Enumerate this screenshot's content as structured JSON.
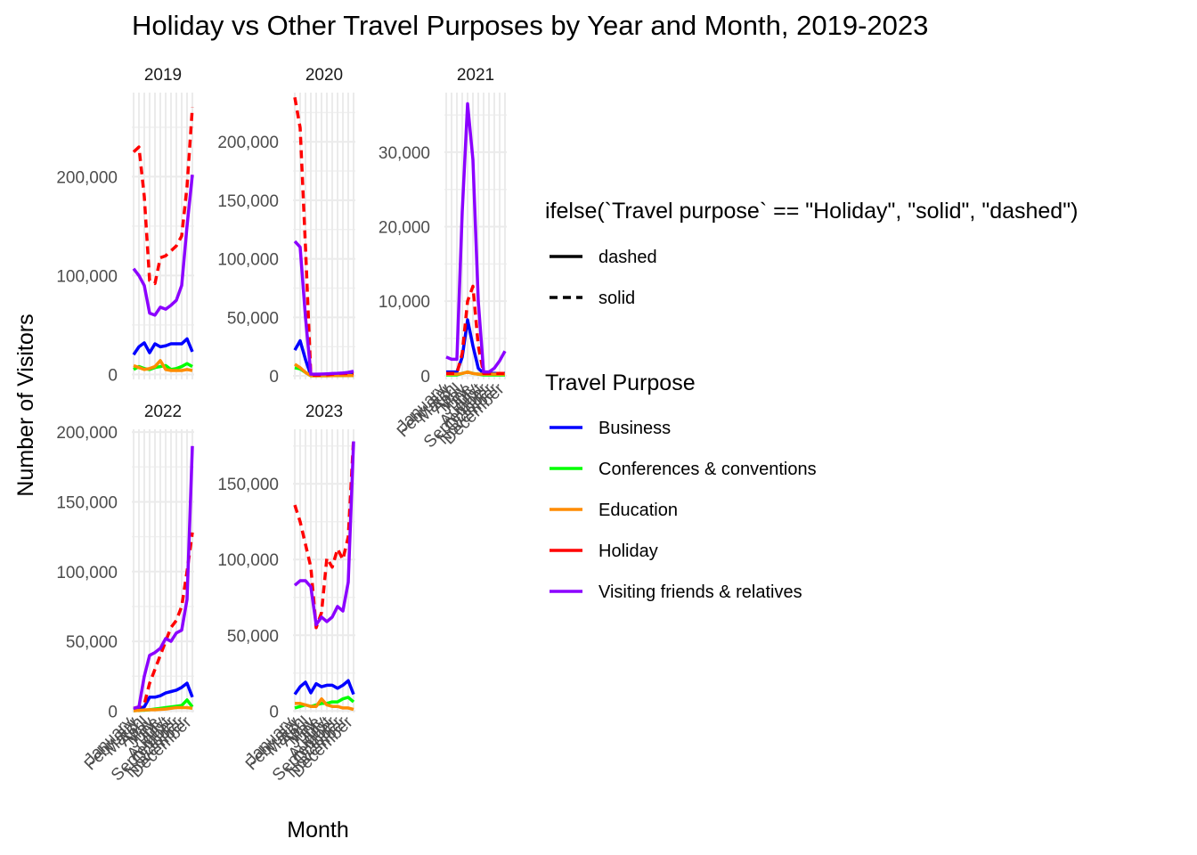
{
  "chart_data": {
    "type": "line",
    "title": "Holiday vs Other Travel Purposes by Year and Month, 2019-2023",
    "xlabel": "Month",
    "ylabel": "Number of Visitors",
    "months": [
      "January",
      "February",
      "March",
      "April",
      "May",
      "June",
      "July",
      "August",
      "September",
      "October",
      "November",
      "December"
    ],
    "linetype_legend": {
      "title": "ifelse(`Travel purpose` == \"Holiday\", \"solid\", \"dashed\")",
      "entries": [
        {
          "label": "dashed",
          "dash": "solid"
        },
        {
          "label": "solid",
          "dash": "dashed"
        }
      ]
    },
    "color_legend": {
      "title": "Travel Purpose",
      "entries": [
        {
          "label": "Business",
          "color": "#0000ff"
        },
        {
          "label": "Conferences & conventions",
          "color": "#00ff00"
        },
        {
          "label": "Education",
          "color": "#ff8c00"
        },
        {
          "label": "Holiday",
          "color": "#ff0000"
        },
        {
          "label": "Visiting friends & relatives",
          "color": "#8b00ff"
        }
      ]
    },
    "panels": [
      {
        "year": "2019",
        "ylim": [
          -5000,
          285000
        ],
        "y_ticks": [
          0,
          100000,
          200000
        ],
        "y_tick_labels": [
          "0",
          "100,000",
          "200,000"
        ],
        "series": [
          {
            "name": "Business",
            "values": [
              20000,
              28000,
              32000,
              22000,
              31000,
              28000,
              29000,
              31000,
              31000,
              31000,
              36000,
              23000
            ]
          },
          {
            "name": "Conferences & conventions",
            "values": [
              5000,
              8000,
              6000,
              5000,
              7000,
              8000,
              9000,
              5000,
              6000,
              8000,
              11000,
              8000
            ]
          },
          {
            "name": "Education",
            "values": [
              9000,
              7000,
              5000,
              6000,
              8000,
              14000,
              5000,
              4000,
              4000,
              4000,
              5000,
              4000
            ]
          },
          {
            "name": "Holiday",
            "values": [
              225000,
              230000,
              180000,
              95000,
              92000,
              118000,
              120000,
              125000,
              130000,
              140000,
              190000,
              270000
            ]
          },
          {
            "name": "Visiting friends & relatives",
            "values": [
              107000,
              100000,
              90000,
              62000,
              60000,
              68000,
              66000,
              70000,
              75000,
              90000,
              150000,
              202000
            ]
          }
        ]
      },
      {
        "year": "2020",
        "ylim": [
          -3000,
          242000
        ],
        "y_ticks": [
          0,
          50000,
          100000,
          150000,
          200000
        ],
        "y_tick_labels": [
          "0",
          "50,000",
          "100,000",
          "150,000",
          "200,000"
        ],
        "series": [
          {
            "name": "Business",
            "values": [
              22000,
              30000,
              14000,
              500,
              500,
              600,
              800,
              900,
              1000,
              1200,
              1500,
              1500
            ]
          },
          {
            "name": "Conferences & conventions",
            "values": [
              7000,
              6000,
              3000,
              100,
              100,
              100,
              100,
              200,
              200,
              200,
              300,
              300
            ]
          },
          {
            "name": "Education",
            "values": [
              10000,
              7000,
              3000,
              100,
              100,
              100,
              100,
              200,
              300,
              300,
              300,
              300
            ]
          },
          {
            "name": "Holiday",
            "values": [
              238000,
              212000,
              110000,
              600,
              500,
              700,
              1000,
              1500,
              2000,
              2000,
              2000,
              2000
            ]
          },
          {
            "name": "Visiting friends & relatives",
            "values": [
              115000,
              110000,
              50000,
              1500,
              1500,
              1600,
              1800,
              2000,
              2200,
              2500,
              3000,
              4000
            ]
          }
        ]
      },
      {
        "year": "2021",
        "ylim": [
          -500,
          38000
        ],
        "y_ticks": [
          0,
          10000,
          20000,
          30000
        ],
        "y_tick_labels": [
          "0",
          "10,000",
          "20,000",
          "30,000"
        ],
        "series": [
          {
            "name": "Business",
            "values": [
              500,
              500,
              500,
              2500,
              7500,
              4000,
              1000,
              300,
              300,
              300,
              300,
              300
            ]
          },
          {
            "name": "Conferences & conventions",
            "values": [
              100,
              100,
              100,
              300,
              500,
              300,
              200,
              100,
              100,
              100,
              100,
              100
            ]
          },
          {
            "name": "Education",
            "values": [
              200,
              200,
              200,
              300,
              500,
              300,
              200,
              200,
              200,
              200,
              200,
              200
            ]
          },
          {
            "name": "Holiday",
            "values": [
              300,
              300,
              300,
              3000,
              10000,
              12000,
              4000,
              300,
              300,
              300,
              300,
              300
            ]
          },
          {
            "name": "Visiting friends & relatives",
            "values": [
              2500,
              2200,
              2200,
              22000,
              36500,
              29000,
              10000,
              500,
              500,
              1000,
              2000,
              3300
            ]
          }
        ]
      },
      {
        "year": "2022",
        "ylim": [
          -1000,
          202000
        ],
        "y_ticks": [
          0,
          50000,
          100000,
          150000,
          200000
        ],
        "y_tick_labels": [
          "0",
          "50,000",
          "100,000",
          "150,000",
          "200,000"
        ],
        "series": [
          {
            "name": "Business",
            "values": [
              1000,
              2000,
              3000,
              10000,
              10000,
              11000,
              13000,
              14000,
              15000,
              17000,
              20000,
              10000
            ]
          },
          {
            "name": "Conferences & conventions",
            "values": [
              300,
              500,
              700,
              1000,
              1500,
              2000,
              2500,
              3000,
              3500,
              4000,
              8000,
              3000
            ]
          },
          {
            "name": "Education",
            "values": [
              300,
              500,
              800,
              1000,
              1000,
              1200,
              1500,
              2000,
              2500,
              2500,
              2500,
              2000
            ]
          },
          {
            "name": "Holiday",
            "values": [
              2000,
              3000,
              5000,
              20000,
              30000,
              40000,
              50000,
              60000,
              65000,
              75000,
              100000,
              128000
            ]
          },
          {
            "name": "Visiting friends & relatives",
            "values": [
              2000,
              3000,
              25000,
              40000,
              42000,
              45000,
              52000,
              50000,
              56000,
              58000,
              80000,
              190000
            ]
          }
        ]
      },
      {
        "year": "2023",
        "ylim": [
          -1000,
          186000
        ],
        "y_ticks": [
          0,
          50000,
          100000,
          150000
        ],
        "y_tick_labels": [
          "0",
          "50,000",
          "100,000",
          "150,000"
        ],
        "series": [
          {
            "name": "Business",
            "values": [
              11000,
              16000,
              19000,
              12000,
              18000,
              16000,
              17000,
              17000,
              15000,
              17000,
              20000,
              11000
            ]
          },
          {
            "name": "Conferences & conventions",
            "values": [
              2000,
              3000,
              4000,
              3000,
              4000,
              5000,
              5000,
              6000,
              6000,
              8000,
              9000,
              6000
            ]
          },
          {
            "name": "Education",
            "values": [
              5000,
              5000,
              4000,
              3000,
              3000,
              8000,
              4000,
              3000,
              3000,
              2000,
              2000,
              1000
            ]
          },
          {
            "name": "Holiday",
            "values": [
              136000,
              125000,
              110000,
              95000,
              55000,
              65000,
              101000,
              95000,
              107000,
              100000,
              115000,
              180000
            ]
          },
          {
            "name": "Visiting friends & relatives",
            "values": [
              83000,
              86000,
              86000,
              82000,
              57000,
              62000,
              59000,
              62000,
              69000,
              66000,
              85000,
              178000
            ]
          }
        ]
      }
    ]
  }
}
